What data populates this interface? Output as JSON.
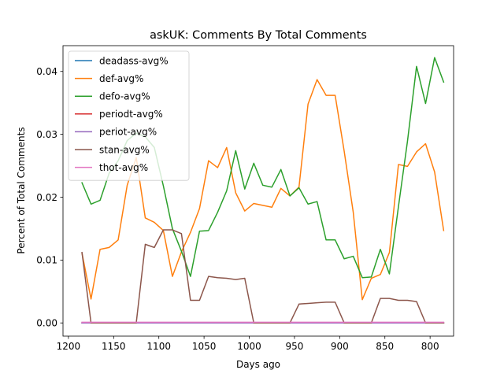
{
  "chart_data": {
    "type": "line",
    "title": "askUK: Comments By Total Comments",
    "xlabel": "Days ago",
    "ylabel": "Percent of Total Comments",
    "x_inverted": true,
    "xlim": [
      1206,
      774
    ],
    "ylim": [
      -0.0021,
      0.0441
    ],
    "xticks": [
      1200,
      1150,
      1100,
      1050,
      1000,
      950,
      900,
      850,
      800
    ],
    "yticks": [
      0.0,
      0.01,
      0.02,
      0.03,
      0.04
    ],
    "ytick_labels": [
      "0.00",
      "0.01",
      "0.02",
      "0.03",
      "0.04"
    ],
    "grid": false,
    "legend_position": "top-left",
    "x": [
      1185,
      1175,
      1165,
      1155,
      1145,
      1135,
      1125,
      1115,
      1105,
      1095,
      1085,
      1075,
      1065,
      1055,
      1045,
      1035,
      1025,
      1015,
      1005,
      995,
      985,
      975,
      965,
      955,
      945,
      935,
      925,
      915,
      905,
      895,
      885,
      875,
      865,
      855,
      845,
      835,
      825,
      815,
      805,
      795,
      785
    ],
    "series": [
      {
        "name": "deadass-avg%",
        "color": "#1f77b4",
        "values": [
          0,
          0,
          0,
          0,
          0,
          0,
          0,
          0,
          0,
          0,
          0,
          0,
          0,
          0,
          0,
          0,
          0,
          0,
          0,
          0,
          0,
          0,
          0,
          0,
          0,
          0,
          0,
          0,
          0,
          0,
          0,
          0,
          0,
          0,
          0,
          0,
          0,
          0,
          0,
          0,
          0
        ]
      },
      {
        "name": "def-avg%",
        "color": "#ff7f0e",
        "values": [
          0.0111,
          0.0038,
          0.0117,
          0.012,
          0.0132,
          0.0219,
          0.0263,
          0.0167,
          0.016,
          0.0147,
          0.0074,
          0.0113,
          0.0144,
          0.0182,
          0.0258,
          0.0247,
          0.0279,
          0.0207,
          0.0178,
          0.019,
          0.0187,
          0.0184,
          0.0214,
          0.0202,
          0.0216,
          0.0348,
          0.0387,
          0.0362,
          0.0362,
          0.0273,
          0.0176,
          0.0037,
          0.0071,
          0.0077,
          0.0112,
          0.0252,
          0.0249,
          0.0272,
          0.0285,
          0.024,
          0.0147
        ]
      },
      {
        "name": "defo-avg%",
        "color": "#2ca02c",
        "values": [
          0.0223,
          0.0189,
          0.0195,
          0.0238,
          0.0258,
          0.029,
          0.0302,
          0.0296,
          0.0279,
          0.0218,
          0.015,
          0.0114,
          0.0074,
          0.0146,
          0.0147,
          0.0176,
          0.021,
          0.0274,
          0.0213,
          0.0254,
          0.0219,
          0.0216,
          0.0244,
          0.0202,
          0.0215,
          0.0189,
          0.0193,
          0.0132,
          0.0132,
          0.0102,
          0.0106,
          0.0072,
          0.0073,
          0.0117,
          0.0078,
          0.0185,
          0.0289,
          0.0408,
          0.0349,
          0.0422,
          0.0383
        ]
      },
      {
        "name": "periodt-avg%",
        "color": "#d62728",
        "values": [
          0,
          0,
          0,
          0,
          0,
          0,
          0,
          0,
          0,
          0,
          0,
          0,
          0,
          0,
          0,
          0,
          0,
          0,
          0,
          0,
          0,
          0,
          0,
          0,
          0,
          0,
          0,
          0,
          0,
          0,
          0,
          0,
          0,
          0,
          0,
          0,
          0,
          0,
          0,
          0,
          0
        ]
      },
      {
        "name": "periot-avg%",
        "color": "#9467bd",
        "values": [
          0,
          0,
          0,
          0,
          0,
          0,
          0,
          0,
          0,
          0,
          0,
          0,
          0,
          0,
          0,
          0,
          0,
          0,
          0,
          0,
          0,
          0,
          0,
          0,
          0,
          0,
          0,
          0,
          0,
          0,
          0,
          0,
          0,
          0,
          0,
          0,
          0,
          0,
          0,
          0,
          0
        ]
      },
      {
        "name": "stan-avg%",
        "color": "#8c564b",
        "values": [
          0.0112,
          0,
          0,
          0,
          0,
          0,
          0,
          0.0125,
          0.012,
          0.0148,
          0.0148,
          0.0142,
          0.0036,
          0.0036,
          0.0074,
          0.0072,
          0.0071,
          0.0069,
          0.0071,
          0,
          0,
          0,
          0,
          0,
          0.003,
          0.0031,
          0.0032,
          0.0033,
          0.0033,
          0,
          0,
          0,
          0,
          0.0039,
          0.0039,
          0.0036,
          0.0036,
          0.0034,
          0,
          0,
          0
        ]
      },
      {
        "name": "thot-avg%",
        "color": "#e377c2",
        "values": [
          0.0001,
          0.0001,
          0.0001,
          0.0001,
          0.0001,
          0.0001,
          0.0001,
          0.0001,
          0.0001,
          0.0001,
          0.0001,
          0.0001,
          0.0001,
          0.0001,
          0.0001,
          0.0001,
          0.0001,
          0.0001,
          0.0001,
          0.0001,
          0.0001,
          0.0001,
          0.0001,
          0.0001,
          0.0001,
          0.0001,
          0.0001,
          0.0001,
          0.0001,
          0.0001,
          0.0001,
          0.0001,
          0.0001,
          0.0001,
          0.0001,
          0.0001,
          0.0001,
          0.0001,
          0.0001,
          0.0001,
          0.0001
        ]
      }
    ]
  }
}
